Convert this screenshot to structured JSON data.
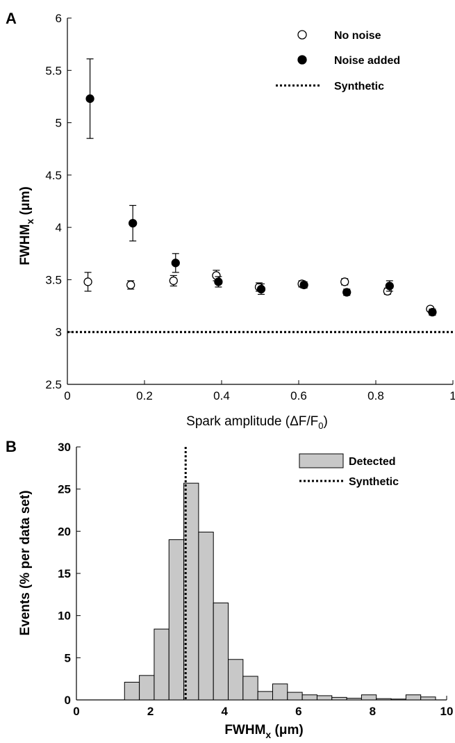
{
  "chart_data": [
    {
      "panel": "A",
      "type": "scatter",
      "xlabel_main": "Spark amplitude (ΔF/F",
      "xlabel_sub": "0",
      "xlabel_tail": ")",
      "ylabel_main": "FWHM",
      "ylabel_sub": "x",
      "ylabel_tail": " (μm)",
      "xlim": [
        0,
        1
      ],
      "ylim": [
        2.5,
        6
      ],
      "xticks": [
        0,
        0.2,
        0.4,
        0.6,
        0.8,
        1
      ],
      "xtick_labels": [
        "0",
        "0.2",
        "0.4",
        "0.6",
        "0.8",
        "1"
      ],
      "yticks": [
        2.5,
        3,
        3.5,
        4,
        4.5,
        5,
        5.5,
        6
      ],
      "ytick_labels": [
        "2.5",
        "3",
        "3.5",
        "4",
        "4.5",
        "5",
        "5.5",
        "6"
      ],
      "legend_position": "top-right",
      "series": [
        {
          "name": "No noise",
          "marker": "open-circle",
          "x": [
            0.056,
            0.167,
            0.278,
            0.389,
            0.5,
            0.611,
            0.722,
            0.833,
            0.944
          ],
          "y": [
            3.48,
            3.45,
            3.49,
            3.54,
            3.43,
            3.46,
            3.48,
            3.39,
            3.22
          ],
          "err": [
            0.09,
            0.04,
            0.05,
            0.05,
            0.04,
            0.03,
            0.03,
            0.03,
            0.02
          ]
        },
        {
          "name": "Noise added",
          "marker": "filled-circle",
          "x": [
            0.056,
            0.167,
            0.278,
            0.389,
            0.5,
            0.611,
            0.722,
            0.833,
            0.944
          ],
          "y": [
            5.23,
            4.04,
            3.66,
            3.48,
            3.41,
            3.45,
            3.38,
            3.44,
            3.19
          ],
          "err": [
            0.38,
            0.17,
            0.09,
            0.05,
            0.05,
            0.03,
            0.03,
            0.05,
            0.03
          ]
        }
      ],
      "reference_line": {
        "name": "Synthetic",
        "y": 3.0,
        "style": "dotted"
      }
    },
    {
      "panel": "B",
      "type": "bar",
      "xlabel_main": "FWHM",
      "xlabel_sub": "x",
      "xlabel_tail": " (μm)",
      "ylabel": "Events (% per data set)",
      "xlim": [
        0,
        10
      ],
      "ylim": [
        0,
        30
      ],
      "xticks": [
        0,
        2,
        4,
        6,
        8,
        10
      ],
      "xtick_labels": [
        "0",
        "2",
        "4",
        "6",
        "8",
        "10"
      ],
      "yticks": [
        0,
        5,
        10,
        15,
        20,
        25,
        30
      ],
      "ytick_labels": [
        "0",
        "5",
        "10",
        "15",
        "20",
        "25",
        "30"
      ],
      "legend_position": "top-right",
      "bin_width": 0.4,
      "bin_starts": [
        1.3,
        1.7,
        2.1,
        2.5,
        2.9,
        3.3,
        3.7,
        4.1,
        4.5,
        4.9,
        5.3,
        5.7,
        6.1,
        6.5,
        6.9,
        7.3,
        7.7,
        8.1,
        8.5,
        8.9,
        9.3
      ],
      "series": [
        {
          "name": "Detected",
          "values": [
            2.1,
            2.9,
            8.4,
            19.0,
            25.7,
            19.9,
            11.5,
            4.8,
            2.8,
            1.0,
            1.9,
            0.9,
            0.6,
            0.5,
            0.3,
            0.2,
            0.6,
            0.15,
            0.1,
            0.6,
            0.35
          ]
        }
      ],
      "reference_line": {
        "name": "Synthetic",
        "x": 2.95,
        "style": "dotted"
      }
    }
  ]
}
